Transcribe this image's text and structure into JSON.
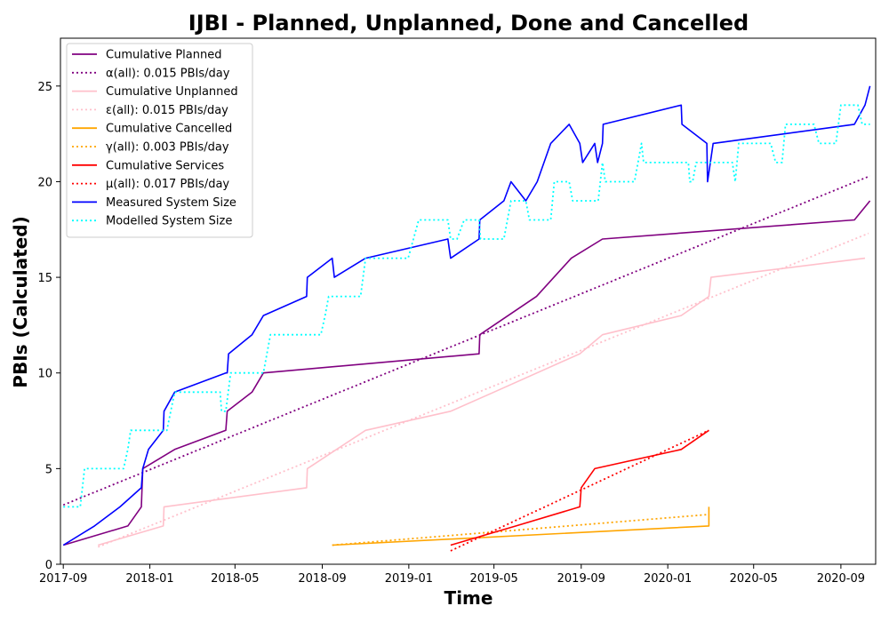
{
  "chart_data": {
    "type": "line",
    "title": "IJBI - Planned, Unplanned, Done  and Cancelled",
    "xlabel": "Time",
    "ylabel": "PBIs (Calculated)",
    "xlim": [
      "2017-08-28",
      "2020-10-20"
    ],
    "ylim": [
      0,
      27.5
    ],
    "x_ticks": [
      "2017-09",
      "2018-01",
      "2018-05",
      "2018-09",
      "2019-01",
      "2019-05",
      "2019-09",
      "2020-01",
      "2020-05",
      "2020-09"
    ],
    "y_ticks": [
      0,
      5,
      10,
      15,
      20,
      25
    ],
    "grid": false,
    "legend_position": "top-left",
    "series": [
      {
        "name": "Cumulative Planned",
        "color": "#800080",
        "style": "solid",
        "points": [
          [
            "2017-09-01",
            1
          ],
          [
            "2017-12-01",
            2
          ],
          [
            "2017-12-20",
            3
          ],
          [
            "2017-12-22",
            5
          ],
          [
            "2018-02-05",
            6
          ],
          [
            "2018-04-18",
            7
          ],
          [
            "2018-04-20",
            8
          ],
          [
            "2018-05-25",
            9
          ],
          [
            "2018-06-10",
            10
          ],
          [
            "2019-04-10",
            11
          ],
          [
            "2019-04-11",
            12
          ],
          [
            "2019-06-30",
            14
          ],
          [
            "2019-08-18",
            16
          ],
          [
            "2019-10-01",
            17
          ],
          [
            "2020-09-20",
            18
          ],
          [
            "2020-10-12",
            19
          ]
        ]
      },
      {
        "name": "α(all): 0.015 PBIs/day",
        "color": "#800080",
        "style": "dotted",
        "points": [
          [
            "2017-09-01",
            3.1
          ],
          [
            "2020-10-12",
            20.3
          ]
        ]
      },
      {
        "name": "Cumulative Unplanned",
        "color": "#ffc0cb",
        "style": "solid",
        "points": [
          [
            "2017-10-20",
            1
          ],
          [
            "2018-01-20",
            2
          ],
          [
            "2018-01-21",
            3
          ],
          [
            "2018-08-10",
            4
          ],
          [
            "2018-08-11",
            5
          ],
          [
            "2018-11-01",
            7
          ],
          [
            "2019-03-01",
            8
          ],
          [
            "2019-05-01",
            9
          ],
          [
            "2019-08-30",
            11
          ],
          [
            "2019-10-01",
            12
          ],
          [
            "2020-01-20",
            13
          ],
          [
            "2020-02-28",
            14
          ],
          [
            "2020-03-02",
            15
          ],
          [
            "2020-10-05",
            16
          ]
        ]
      },
      {
        "name": "ε(all): 0.015 PBIs/day",
        "color": "#ffc0cb",
        "style": "dotted",
        "points": [
          [
            "2017-10-20",
            0.9
          ],
          [
            "2020-10-10",
            17.3
          ]
        ]
      },
      {
        "name": "Cumulative Cancelled",
        "color": "#ffa500",
        "style": "solid",
        "points": [
          [
            "2018-09-15",
            1
          ],
          [
            "2020-02-28",
            2
          ],
          [
            "2020-02-28",
            3
          ]
        ]
      },
      {
        "name": "γ(all): 0.003 PBIs/day",
        "color": "#ffa500",
        "style": "dotted",
        "points": [
          [
            "2018-09-15",
            1.0
          ],
          [
            "2020-02-28",
            2.6
          ]
        ]
      },
      {
        "name": "Cumulative Services",
        "color": "#ff0000",
        "style": "solid",
        "points": [
          [
            "2019-03-01",
            1
          ],
          [
            "2019-06-01",
            2
          ],
          [
            "2019-08-30",
            3
          ],
          [
            "2019-09-01",
            4
          ],
          [
            "2019-09-20",
            5
          ],
          [
            "2020-01-20",
            6
          ],
          [
            "2020-02-28",
            7
          ]
        ]
      },
      {
        "name": "μ(all): 0.017 PBIs/day",
        "color": "#ff0000",
        "style": "dotted",
        "points": [
          [
            "2019-03-01",
            0.7
          ],
          [
            "2020-02-28",
            7.0
          ]
        ]
      },
      {
        "name": "Measured System Size",
        "color": "#0000ff",
        "style": "solid",
        "points": [
          [
            "2017-09-01",
            1
          ],
          [
            "2017-10-15",
            2
          ],
          [
            "2017-11-20",
            3
          ],
          [
            "2017-12-20",
            4
          ],
          [
            "2017-12-22",
            5
          ],
          [
            "2017-12-30",
            6
          ],
          [
            "2018-01-20",
            7
          ],
          [
            "2018-01-21",
            8
          ],
          [
            "2018-02-05",
            9
          ],
          [
            "2018-04-18",
            10
          ],
          [
            "2018-04-20",
            10
          ],
          [
            "2018-04-22",
            11
          ],
          [
            "2018-05-25",
            12
          ],
          [
            "2018-06-10",
            13
          ],
          [
            "2018-08-10",
            14
          ],
          [
            "2018-08-11",
            15
          ],
          [
            "2018-09-15",
            16
          ],
          [
            "2018-09-18",
            15
          ],
          [
            "2018-11-01",
            16
          ],
          [
            "2019-02-25",
            17
          ],
          [
            "2019-03-01",
            16
          ],
          [
            "2019-04-10",
            17
          ],
          [
            "2019-04-11",
            18
          ],
          [
            "2019-05-15",
            19
          ],
          [
            "2019-05-25",
            20
          ],
          [
            "2019-06-15",
            19
          ],
          [
            "2019-07-01",
            20
          ],
          [
            "2019-07-20",
            22
          ],
          [
            "2019-08-15",
            23
          ],
          [
            "2019-08-30",
            22
          ],
          [
            "2019-09-03",
            21
          ],
          [
            "2019-09-20",
            22
          ],
          [
            "2019-09-24",
            21
          ],
          [
            "2019-10-01",
            22
          ],
          [
            "2019-10-02",
            23
          ],
          [
            "2020-01-20",
            24
          ],
          [
            "2020-01-21",
            23
          ],
          [
            "2020-02-25",
            22
          ],
          [
            "2020-02-26",
            20
          ],
          [
            "2020-03-05",
            22
          ],
          [
            "2020-09-20",
            23
          ],
          [
            "2020-10-05",
            24
          ],
          [
            "2020-10-12",
            25
          ]
        ]
      },
      {
        "name": "Modelled System Size",
        "color": "#00ffff",
        "style": "dotted",
        "points": [
          [
            "2017-09-01",
            3
          ],
          [
            "2017-09-25",
            3
          ],
          [
            "2017-10-01",
            5
          ],
          [
            "2017-11-25",
            5
          ],
          [
            "2017-12-01",
            6
          ],
          [
            "2017-12-05",
            7
          ],
          [
            "2018-01-25",
            7
          ],
          [
            "2018-02-05",
            9
          ],
          [
            "2018-04-10",
            9
          ],
          [
            "2018-04-12",
            8
          ],
          [
            "2018-04-18",
            8
          ],
          [
            "2018-04-25",
            10
          ],
          [
            "2018-06-10",
            10
          ],
          [
            "2018-06-20",
            12
          ],
          [
            "2018-08-30",
            12
          ],
          [
            "2018-09-05",
            13
          ],
          [
            "2018-09-10",
            14
          ],
          [
            "2018-10-25",
            14
          ],
          [
            "2018-11-01",
            16
          ],
          [
            "2018-12-31",
            16
          ],
          [
            "2019-01-15",
            18
          ],
          [
            "2019-02-25",
            18
          ],
          [
            "2019-03-01",
            17
          ],
          [
            "2019-03-10",
            17
          ],
          [
            "2019-03-20",
            18
          ],
          [
            "2019-04-10",
            18
          ],
          [
            "2019-04-12",
            17
          ],
          [
            "2019-05-15",
            17
          ],
          [
            "2019-05-25",
            19
          ],
          [
            "2019-06-15",
            19
          ],
          [
            "2019-06-20",
            18
          ],
          [
            "2019-07-20",
            18
          ],
          [
            "2019-07-25",
            20
          ],
          [
            "2019-08-15",
            20
          ],
          [
            "2019-08-20",
            19
          ],
          [
            "2019-09-25",
            19
          ],
          [
            "2019-10-01",
            21
          ],
          [
            "2019-10-05",
            20
          ],
          [
            "2019-11-15",
            20
          ],
          [
            "2019-11-25",
            22
          ],
          [
            "2019-11-28",
            21
          ],
          [
            "2020-01-30",
            21
          ],
          [
            "2020-02-01",
            20
          ],
          [
            "2020-02-05",
            20
          ],
          [
            "2020-02-10",
            21
          ],
          [
            "2020-04-01",
            21
          ],
          [
            "2020-04-05",
            20
          ],
          [
            "2020-04-10",
            22
          ],
          [
            "2020-05-25",
            22
          ],
          [
            "2020-06-01",
            21
          ],
          [
            "2020-06-10",
            21
          ],
          [
            "2020-06-15",
            23
          ],
          [
            "2020-07-25",
            23
          ],
          [
            "2020-08-01",
            22
          ],
          [
            "2020-08-25",
            22
          ],
          [
            "2020-09-01",
            24
          ],
          [
            "2020-09-25",
            24
          ],
          [
            "2020-10-01",
            23
          ],
          [
            "2020-10-12",
            23
          ]
        ]
      }
    ]
  }
}
